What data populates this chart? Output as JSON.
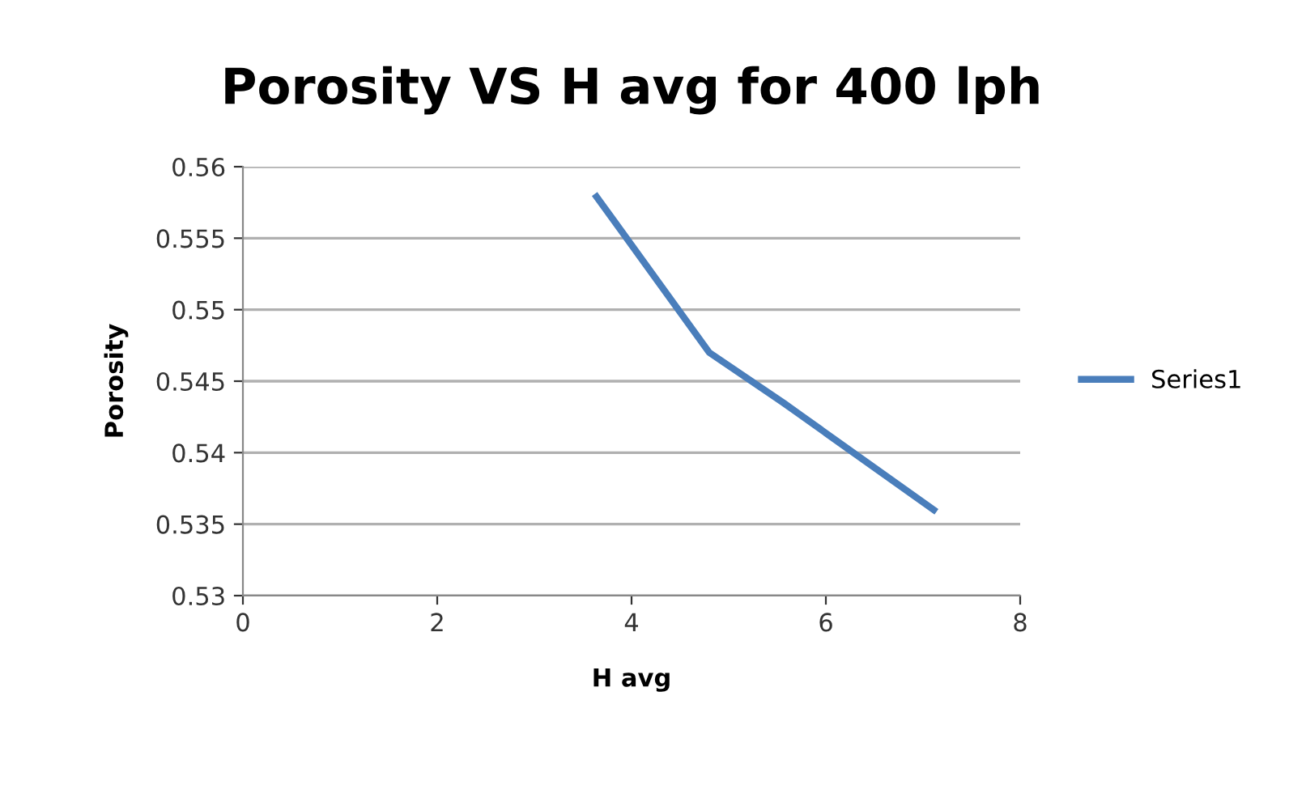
{
  "chart_data": {
    "type": "line",
    "title": "Porosity VS H avg for 400 lph",
    "xlabel": "H avg",
    "ylabel": "Porosity",
    "series": [
      {
        "name": "Series1",
        "color": "#4a7ebb",
        "x": [
          3.64,
          4.8,
          5.56,
          7.11
        ],
        "values": [
          0.5579,
          0.547,
          0.5435,
          0.536
        ]
      }
    ],
    "xlim": [
      0,
      8
    ],
    "xticks": [
      0,
      2,
      4,
      6,
      8
    ],
    "ylim": [
      0.53,
      0.56
    ],
    "yticks": [
      0.53,
      0.535,
      0.54,
      0.545,
      0.55,
      0.555,
      0.56
    ],
    "grid": "y",
    "legend": "right",
    "marker": "none",
    "line_style": "solid"
  }
}
